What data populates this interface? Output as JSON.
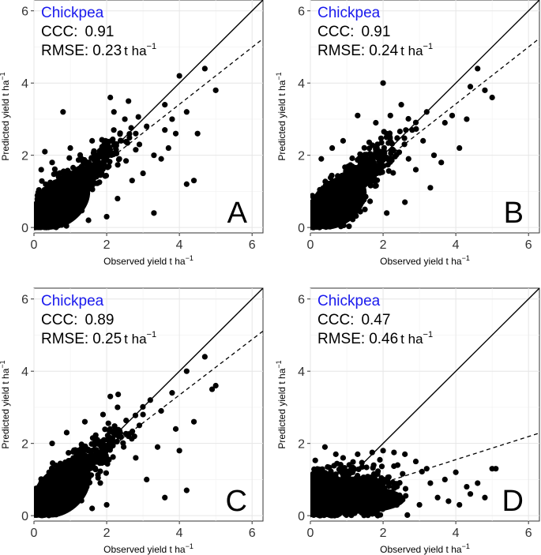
{
  "chart_data": [
    {
      "type": "scatter",
      "panel": "A",
      "crop": "Chickpea",
      "ccc_label": "CCC:",
      "ccc_value": "0.91",
      "rmse_label": "RMSE:",
      "rmse_value": "0.23",
      "unit_main": "t ha",
      "unit_sup": "−1",
      "xlabel": "Observed yield t ha",
      "ylabel": "Predicted yield t ha",
      "label_sup": "−1",
      "xlim": [
        0,
        6.3
      ],
      "ylim": [
        -0.15,
        6.3
      ],
      "xticks": [
        "0",
        "2",
        "4",
        "6"
      ],
      "yticks": [
        "0",
        "2",
        "4",
        "6"
      ],
      "reference_line": {
        "label": "1:1",
        "slope": 1,
        "intercept": 0
      },
      "fit_line": {
        "slope": 0.79,
        "intercept": 0.25
      },
      "outliers": [
        [
          4.7,
          4.4
        ],
        [
          4.2,
          3.2
        ],
        [
          3.9,
          2.6
        ],
        [
          3.6,
          3.4
        ],
        [
          3.3,
          2.0
        ],
        [
          3.1,
          2.8
        ],
        [
          2.9,
          2.3
        ],
        [
          3.5,
          1.9
        ],
        [
          3.0,
          1.5
        ],
        [
          2.7,
          1.3
        ],
        [
          3.3,
          0.4
        ],
        [
          4.2,
          1.2
        ],
        [
          4.4,
          1.3
        ],
        [
          2.2,
          3.2
        ],
        [
          2.5,
          3.0
        ],
        [
          2.6,
          3.5
        ],
        [
          2.1,
          3.6
        ],
        [
          1.6,
          2.4
        ],
        [
          0.2,
          1.6
        ],
        [
          0.5,
          1.8
        ],
        [
          0.3,
          2.1
        ],
        [
          1.0,
          2.2
        ],
        [
          0.8,
          3.2
        ],
        [
          2.0,
          0.3
        ],
        [
          2.3,
          0.8
        ],
        [
          1.5,
          0.2
        ],
        [
          3.7,
          2.2
        ],
        [
          4.5,
          2.6
        ],
        [
          5.0,
          3.8
        ],
        [
          4.0,
          4.2
        ],
        [
          3.6,
          2.7
        ],
        [
          2.8,
          2.6
        ],
        [
          2.4,
          2.4
        ],
        [
          3.8,
          3.0
        ]
      ]
    },
    {
      "type": "scatter",
      "panel": "B",
      "crop": "Chickpea",
      "ccc_label": "CCC:",
      "ccc_value": "0.91",
      "rmse_label": "RMSE:",
      "rmse_value": "0.24",
      "unit_main": "t ha",
      "unit_sup": "−1",
      "xlabel": "Observed yield t ha",
      "ylabel": "Predicted yield t ha",
      "label_sup": "−1",
      "xlim": [
        0,
        6.3
      ],
      "ylim": [
        -0.15,
        6.3
      ],
      "xticks": [
        "0",
        "2",
        "4",
        "6"
      ],
      "yticks": [
        "0",
        "2",
        "4",
        "6"
      ],
      "reference_line": {
        "label": "1:1",
        "slope": 1,
        "intercept": 0
      },
      "fit_line": {
        "slope": 0.79,
        "intercept": 0.26
      },
      "outliers": [
        [
          4.6,
          4.4
        ],
        [
          5.0,
          3.6
        ],
        [
          4.4,
          3.9
        ],
        [
          3.9,
          3.1
        ],
        [
          3.7,
          2.9
        ],
        [
          4.1,
          2.2
        ],
        [
          3.4,
          2.0
        ],
        [
          3.1,
          2.4
        ],
        [
          2.8,
          2.7
        ],
        [
          2.9,
          1.6
        ],
        [
          3.3,
          1.1
        ],
        [
          2.5,
          3.4
        ],
        [
          2.2,
          3.1
        ],
        [
          2.0,
          4.0
        ],
        [
          1.8,
          2.9
        ],
        [
          0.6,
          2.2
        ],
        [
          0.3,
          1.9
        ],
        [
          0.9,
          2.4
        ],
        [
          1.3,
          3.1
        ],
        [
          2.1,
          0.4
        ],
        [
          2.6,
          0.7
        ],
        [
          3.6,
          1.8
        ],
        [
          4.3,
          3.0
        ],
        [
          2.7,
          1.9
        ],
        [
          3.2,
          3.2
        ],
        [
          1.5,
          0.5
        ],
        [
          4.8,
          3.8
        ]
      ]
    },
    {
      "type": "scatter",
      "panel": "C",
      "crop": "Chickpea",
      "ccc_label": "CCC:",
      "ccc_value": "0.89",
      "rmse_label": "RMSE:",
      "rmse_value": "0.25",
      "unit_main": "t ha",
      "unit_sup": "−1",
      "xlabel": "Observed yield t ha",
      "ylabel": "Predicted yield t ha",
      "label_sup": "−1",
      "xlim": [
        0,
        6.3
      ],
      "ylim": [
        -0.15,
        6.3
      ],
      "xticks": [
        "0",
        "2",
        "4",
        "6"
      ],
      "yticks": [
        "0",
        "2",
        "4",
        "6"
      ],
      "reference_line": {
        "label": "1:1",
        "slope": 1,
        "intercept": 0
      },
      "fit_line": {
        "slope": 0.77,
        "intercept": 0.26
      },
      "outliers": [
        [
          4.7,
          4.4
        ],
        [
          4.2,
          4.0
        ],
        [
          5.0,
          3.6
        ],
        [
          3.8,
          3.4
        ],
        [
          3.5,
          2.9
        ],
        [
          3.2,
          3.2
        ],
        [
          3.9,
          2.4
        ],
        [
          3.4,
          1.9
        ],
        [
          2.9,
          2.5
        ],
        [
          2.8,
          1.6
        ],
        [
          3.1,
          1.0
        ],
        [
          3.6,
          0.5
        ],
        [
          4.2,
          0.7
        ],
        [
          4.4,
          2.6
        ],
        [
          2.3,
          3.0
        ],
        [
          2.1,
          3.3
        ],
        [
          1.9,
          2.8
        ],
        [
          0.5,
          2.0
        ],
        [
          0.9,
          2.3
        ],
        [
          1.4,
          2.6
        ],
        [
          2.0,
          0.3
        ],
        [
          1.6,
          0.2
        ],
        [
          4.0,
          1.8
        ],
        [
          3.0,
          2.8
        ],
        [
          2.6,
          2.2
        ],
        [
          4.9,
          3.5
        ]
      ]
    },
    {
      "type": "scatter",
      "panel": "D",
      "crop": "Chickpea",
      "ccc_label": "CCC:",
      "ccc_value": "0.47",
      "rmse_label": "RMSE:",
      "rmse_value": "0.46",
      "unit_main": "t ha",
      "unit_sup": "−1",
      "xlabel": "Observed yield t ha",
      "ylabel": "Predicted yield t ha",
      "label_sup": "−1",
      "xlim": [
        0,
        6.3
      ],
      "ylim": [
        -0.15,
        6.3
      ],
      "xticks": [
        "0",
        "2",
        "4",
        "6"
      ],
      "yticks": [
        "0",
        "2",
        "4",
        "6"
      ],
      "reference_line": {
        "label": "1:1",
        "slope": 1,
        "intercept": 0
      },
      "fit_line": {
        "slope": 0.32,
        "intercept": 0.27
      },
      "outliers": [
        [
          5.0,
          1.3
        ],
        [
          4.6,
          0.9
        ],
        [
          4.3,
          0.8
        ],
        [
          4.0,
          1.2
        ],
        [
          3.7,
          1.0
        ],
        [
          3.5,
          0.5
        ],
        [
          3.2,
          1.3
        ],
        [
          2.9,
          1.5
        ],
        [
          2.6,
          1.7
        ],
        [
          2.3,
          1.75
        ],
        [
          2.0,
          1.8
        ],
        [
          1.7,
          1.75
        ],
        [
          1.3,
          1.7
        ],
        [
          0.9,
          1.6
        ],
        [
          0.4,
          1.9
        ],
        [
          0.7,
          1.7
        ],
        [
          3.0,
          0.3
        ],
        [
          3.8,
          0.4
        ],
        [
          4.4,
          0.6
        ],
        [
          2.4,
          1.4
        ],
        [
          5.1,
          1.3
        ],
        [
          4.8,
          0.5
        ],
        [
          3.3,
          0.9
        ],
        [
          4.1,
          0.3
        ]
      ]
    }
  ]
}
